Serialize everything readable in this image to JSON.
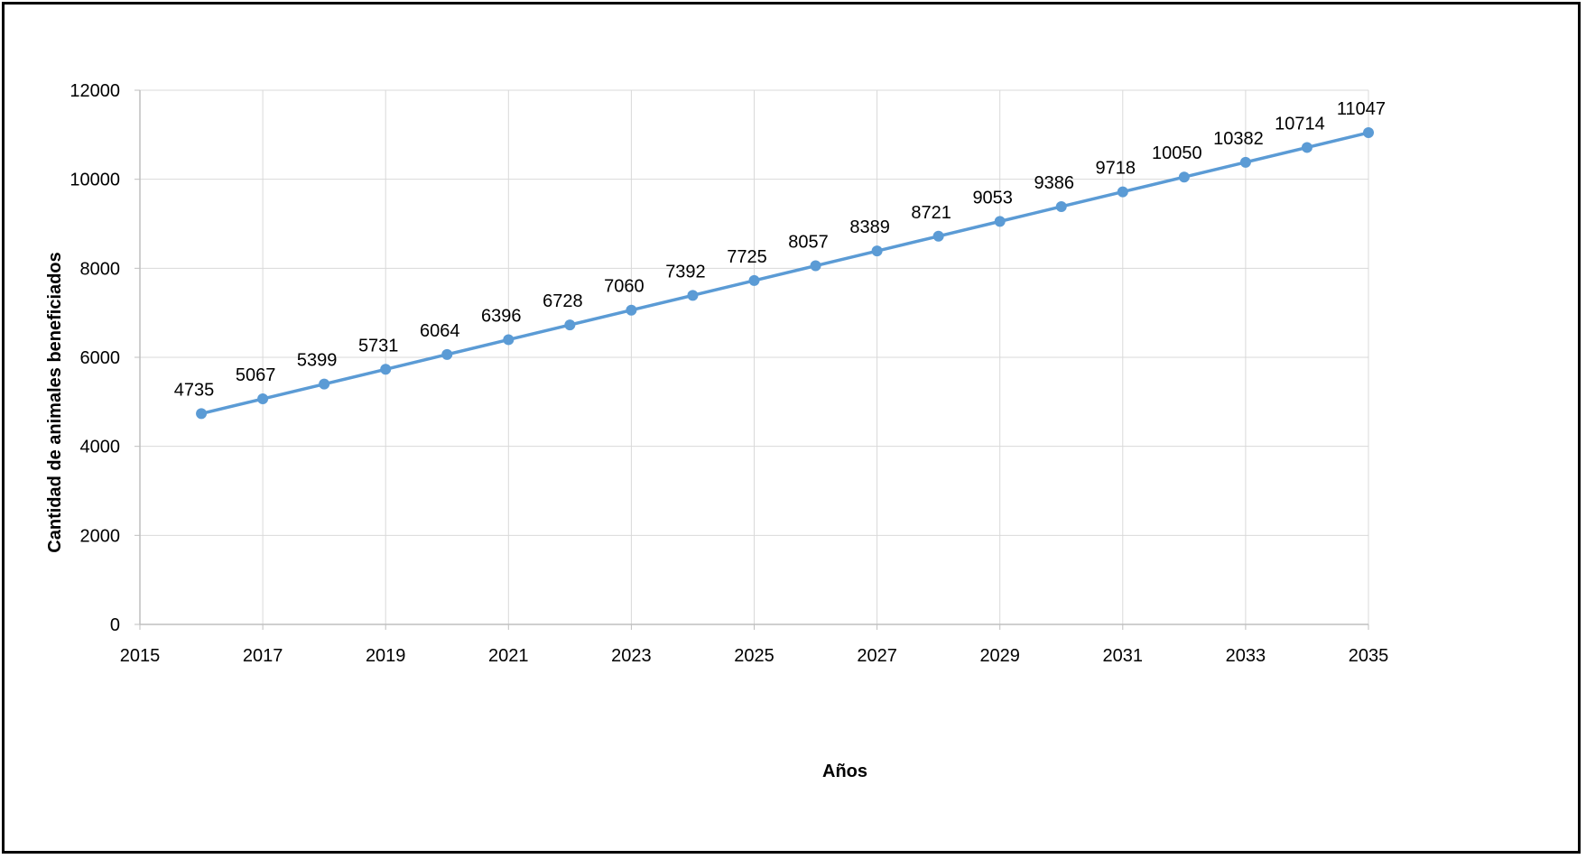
{
  "chart_data": {
    "type": "line",
    "title": "",
    "xlabel": "Años",
    "ylabel": "Cantidad  de animales  beneficiados",
    "xlim": [
      2015,
      2035
    ],
    "ylim": [
      0,
      12000
    ],
    "xticks": [
      2015,
      2017,
      2019,
      2021,
      2023,
      2025,
      2027,
      2029,
      2031,
      2033,
      2035
    ],
    "yticks": [
      0,
      2000,
      4000,
      6000,
      8000,
      10000,
      12000
    ],
    "grid": true,
    "legend": "none",
    "colors": {
      "series": "#5B9BD5",
      "grid": "#D9D9D9",
      "axis": "#BFBFBF",
      "text": "#000000"
    },
    "series": [
      {
        "x": [
          2016,
          2017,
          2018,
          2019,
          2020,
          2021,
          2022,
          2023,
          2024,
          2025,
          2026,
          2027,
          2028,
          2029,
          2030,
          2031,
          2032,
          2033,
          2034,
          2035
        ],
        "values": [
          4735,
          5067,
          5399,
          5731,
          6064,
          6396,
          6728,
          7060,
          7392,
          7725,
          8057,
          8389,
          8721,
          9053,
          9386,
          9718,
          10050,
          10382,
          10714,
          11047
        ]
      }
    ]
  }
}
